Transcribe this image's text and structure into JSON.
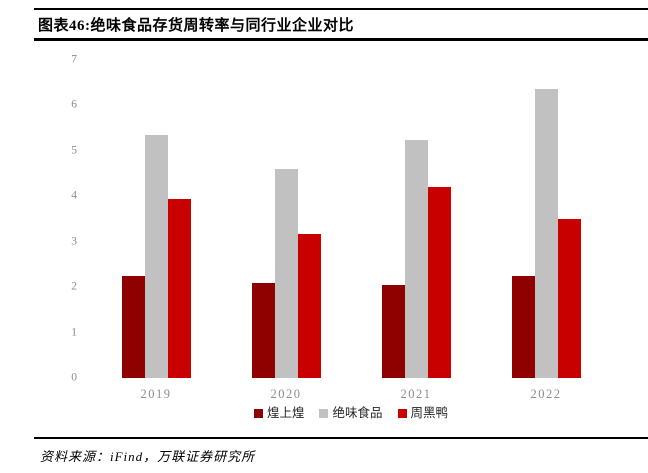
{
  "header": {
    "title": "图表46:绝味食品存货周转率与同行业企业对比"
  },
  "footer": {
    "source": "资料来源：iFind，万联证券研究所"
  },
  "chart_data": {
    "type": "bar",
    "title": "图表46:绝味食品存货周转率与同行业企业对比",
    "categories": [
      "2019",
      "2020",
      "2021",
      "2022"
    ],
    "series": [
      {
        "name": "煌上煌",
        "color": "#8F0000",
        "values": [
          2.25,
          2.1,
          2.04,
          2.24
        ]
      },
      {
        "name": "绝味食品",
        "color": "#C1C1C1",
        "values": [
          5.35,
          4.61,
          5.23,
          6.37
        ]
      },
      {
        "name": "周黑鸭",
        "color": "#C80000",
        "values": [
          3.94,
          3.16,
          4.2,
          3.51
        ]
      }
    ],
    "xlabel": "",
    "ylabel": "",
    "ylim": [
      0,
      7
    ],
    "yticks": [
      0,
      1,
      2,
      3,
      4,
      5,
      6,
      7
    ],
    "grid": false,
    "legend_position": "bottom",
    "axis_label_color": "#8c8c8c",
    "rule_color": "#000000"
  }
}
